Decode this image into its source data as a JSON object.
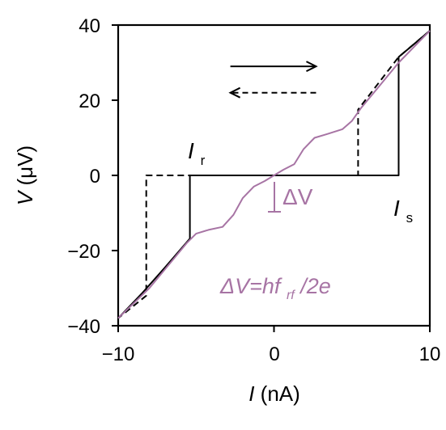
{
  "chart_data": {
    "type": "line",
    "xlabel": {
      "symbol": "I",
      "unit": "(nA)"
    },
    "ylabel": {
      "symbol": "V",
      "unit": "(μV)"
    },
    "xlim": [
      -10,
      10
    ],
    "ylim": [
      -40,
      40
    ],
    "xticks": [
      -10,
      0,
      10
    ],
    "xtick_labels": [
      "−10",
      "0",
      "10"
    ],
    "yticks": [
      -40,
      -20,
      0,
      20,
      40
    ],
    "ytick_labels": [
      "−40",
      "−20",
      "0",
      "20",
      "40"
    ],
    "grid": false,
    "colors": {
      "sweep": "#000000",
      "steps": "#a774a4"
    },
    "series": [
      {
        "style": "solid",
        "color": "#000000",
        "points": [
          [
            -10,
            -38
          ],
          [
            -8.5,
            -31.5
          ],
          [
            -7,
            -24.5
          ],
          [
            -5.4,
            -16.8
          ],
          [
            -5.4,
            0
          ],
          [
            0,
            0
          ],
          [
            8.0,
            0
          ],
          [
            8.0,
            31.5
          ],
          [
            9,
            35
          ],
          [
            10,
            38.5
          ]
        ]
      },
      {
        "style": "dashed",
        "color": "#000000",
        "points": [
          [
            10,
            38.5
          ],
          [
            8.0,
            31.5
          ],
          [
            5.4,
            17.5
          ],
          [
            5.4,
            0
          ],
          [
            0,
            0
          ],
          [
            -8.2,
            0
          ],
          [
            -8.2,
            -32
          ],
          [
            -10,
            -38
          ]
        ]
      },
      {
        "style": "solid",
        "color": "#a774a4",
        "points": [
          [
            -10,
            -38
          ],
          [
            -8,
            -30
          ],
          [
            -6.5,
            -22.5
          ],
          [
            -5.6,
            -18
          ],
          [
            -5.0,
            -15.5
          ],
          [
            -4.2,
            -14.5
          ],
          [
            -3.3,
            -13.7
          ],
          [
            -2.6,
            -10.5
          ],
          [
            -2.0,
            -6
          ],
          [
            -1.3,
            -3
          ],
          [
            -0.6,
            -1.5
          ],
          [
            0,
            0
          ],
          [
            0.6,
            1.5
          ],
          [
            1.3,
            3
          ],
          [
            1.9,
            7
          ],
          [
            2.6,
            10
          ],
          [
            3.4,
            11
          ],
          [
            4.4,
            12.3
          ],
          [
            5.0,
            14.5
          ],
          [
            5.6,
            18
          ],
          [
            6.6,
            23
          ],
          [
            8,
            30
          ],
          [
            10,
            38.5
          ]
        ]
      }
    ],
    "arrows": [
      {
        "from": [
          -2.8,
          29
        ],
        "to": [
          2.7,
          29
        ],
        "style": "solid"
      },
      {
        "from": [
          2.7,
          22
        ],
        "to": [
          -2.8,
          22
        ],
        "style": "dashed"
      }
    ],
    "annotations": {
      "Ir": {
        "symbol": "I",
        "subscript": "r"
      },
      "Is": {
        "symbol": "I",
        "subscript": "s"
      },
      "deltaV": {
        "text": "ΔV"
      },
      "formula": {
        "pre": "ΔV=hf",
        "sub": "rf",
        "post": "/2e"
      }
    }
  }
}
